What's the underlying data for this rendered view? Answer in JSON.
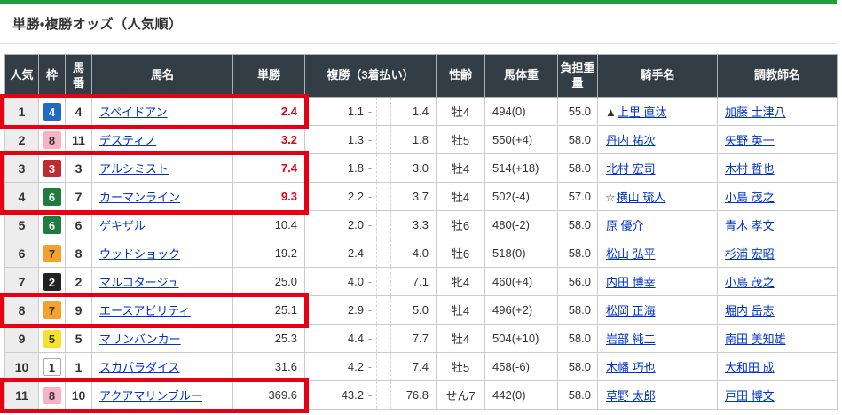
{
  "page": {
    "title": "単勝・複勝オッズ（人気順）",
    "accent_green": "#21a038",
    "highlight_red": "#e60012",
    "link_blue": "#0033cc",
    "header_bg": "#333d46"
  },
  "table": {
    "headers": [
      "人気",
      "枠",
      "馬番",
      "馬名",
      "単勝",
      "複勝（3着払い）",
      "性齢",
      "馬体重",
      "負担重量",
      "騎手名",
      "調教師名"
    ],
    "place_dash": "-",
    "frame_colors": {
      "1": {
        "bg": "#ffffff",
        "fg": "#333333",
        "border": "#aaaaaa"
      },
      "2": {
        "bg": "#222222",
        "fg": "#ffffff",
        "border": "#222222"
      },
      "3": {
        "bg": "#bf2b30",
        "fg": "#ffffff",
        "border": "#bf2b30"
      },
      "4": {
        "bg": "#1f6cc5",
        "fg": "#ffffff",
        "border": "#1f6cc5"
      },
      "5": {
        "bg": "#f5e22e",
        "fg": "#333333",
        "border": "#f5e22e"
      },
      "6": {
        "bg": "#1e7d3c",
        "fg": "#ffffff",
        "border": "#1e7d3c"
      },
      "7": {
        "bg": "#f4a12d",
        "fg": "#333333",
        "border": "#f4a12d"
      },
      "8": {
        "bg": "#f6b3c5",
        "fg": "#333333",
        "border": "#f6b3c5"
      }
    },
    "rows": [
      {
        "rank": "1",
        "frame": "4",
        "horse_no": "4",
        "horse": "スペイドアン",
        "win": "2.4",
        "win_red": true,
        "place_min": "1.1",
        "place_max": "1.4",
        "sex_age": "牡4",
        "weight": "494(0)",
        "load": "55.0",
        "jockey_mark": "▲",
        "jockey": "上里 直汰",
        "trainer": "加藤 士津八"
      },
      {
        "rank": "2",
        "frame": "8",
        "horse_no": "11",
        "horse": "デスティノ",
        "win": "3.2",
        "win_red": true,
        "place_min": "1.3",
        "place_max": "1.8",
        "sex_age": "牡5",
        "weight": "550(+4)",
        "load": "58.0",
        "jockey_mark": "",
        "jockey": "丹内 祐次",
        "trainer": "矢野 英一"
      },
      {
        "rank": "3",
        "frame": "3",
        "horse_no": "3",
        "horse": "アルシミスト",
        "win": "7.4",
        "win_red": true,
        "place_min": "1.8",
        "place_max": "3.0",
        "sex_age": "牡4",
        "weight": "514(+18)",
        "load": "58.0",
        "jockey_mark": "",
        "jockey": "北村 宏司",
        "trainer": "木村 哲也"
      },
      {
        "rank": "4",
        "frame": "6",
        "horse_no": "7",
        "horse": "カーマンライン",
        "win": "9.3",
        "win_red": true,
        "place_min": "2.2",
        "place_max": "3.7",
        "sex_age": "牡4",
        "weight": "502(-4)",
        "load": "57.0",
        "jockey_mark": "☆",
        "jockey": "横山 琉人",
        "trainer": "小島 茂之"
      },
      {
        "rank": "5",
        "frame": "6",
        "horse_no": "6",
        "horse": "ゲキザル",
        "win": "10.4",
        "win_red": false,
        "place_min": "2.0",
        "place_max": "3.3",
        "sex_age": "牡6",
        "weight": "480(-2)",
        "load": "58.0",
        "jockey_mark": "",
        "jockey": "原 優介",
        "trainer": "青木 孝文"
      },
      {
        "rank": "6",
        "frame": "7",
        "horse_no": "8",
        "horse": "ウッドショック",
        "win": "19.2",
        "win_red": false,
        "place_min": "2.4",
        "place_max": "4.0",
        "sex_age": "牡6",
        "weight": "518(0)",
        "load": "58.0",
        "jockey_mark": "",
        "jockey": "松山 弘平",
        "trainer": "杉浦 宏昭"
      },
      {
        "rank": "7",
        "frame": "2",
        "horse_no": "2",
        "horse": "マルコタージュ",
        "win": "25.0",
        "win_red": false,
        "place_min": "4.0",
        "place_max": "7.1",
        "sex_age": "牝4",
        "weight": "460(+4)",
        "load": "56.0",
        "jockey_mark": "",
        "jockey": "内田 博幸",
        "trainer": "小島 茂之"
      },
      {
        "rank": "8",
        "frame": "7",
        "horse_no": "9",
        "horse": "エースアビリティ",
        "win": "25.1",
        "win_red": false,
        "place_min": "2.9",
        "place_max": "5.0",
        "sex_age": "牡4",
        "weight": "496(+2)",
        "load": "58.0",
        "jockey_mark": "",
        "jockey": "松岡 正海",
        "trainer": "堀内 岳志"
      },
      {
        "rank": "9",
        "frame": "5",
        "horse_no": "5",
        "horse": "マリンバンカー",
        "win": "25.3",
        "win_red": false,
        "place_min": "4.4",
        "place_max": "7.7",
        "sex_age": "牡4",
        "weight": "504(+10)",
        "load": "58.0",
        "jockey_mark": "",
        "jockey": "岩部 純二",
        "trainer": "南田 美知雄"
      },
      {
        "rank": "10",
        "frame": "1",
        "horse_no": "1",
        "horse": "スカパラダイス",
        "win": "31.6",
        "win_red": false,
        "place_min": "4.2",
        "place_max": "7.4",
        "sex_age": "牡5",
        "weight": "458(-6)",
        "load": "58.0",
        "jockey_mark": "",
        "jockey": "木幡 巧也",
        "trainer": "大和田 成"
      },
      {
        "rank": "11",
        "frame": "8",
        "horse_no": "10",
        "horse": "アクアマリンブルー",
        "win": "369.6",
        "win_red": false,
        "place_min": "43.2",
        "place_max": "76.8",
        "sex_age": "せん7",
        "weight": "442(0)",
        "load": "58.0",
        "jockey_mark": "",
        "jockey": "草野 太郎",
        "trainer": "戸田 博文"
      }
    ],
    "highlights": [
      {
        "from": 1,
        "to": 1
      },
      {
        "from": 3,
        "to": 4
      },
      {
        "from": 8,
        "to": 8
      },
      {
        "from": 11,
        "to": 11
      }
    ]
  }
}
